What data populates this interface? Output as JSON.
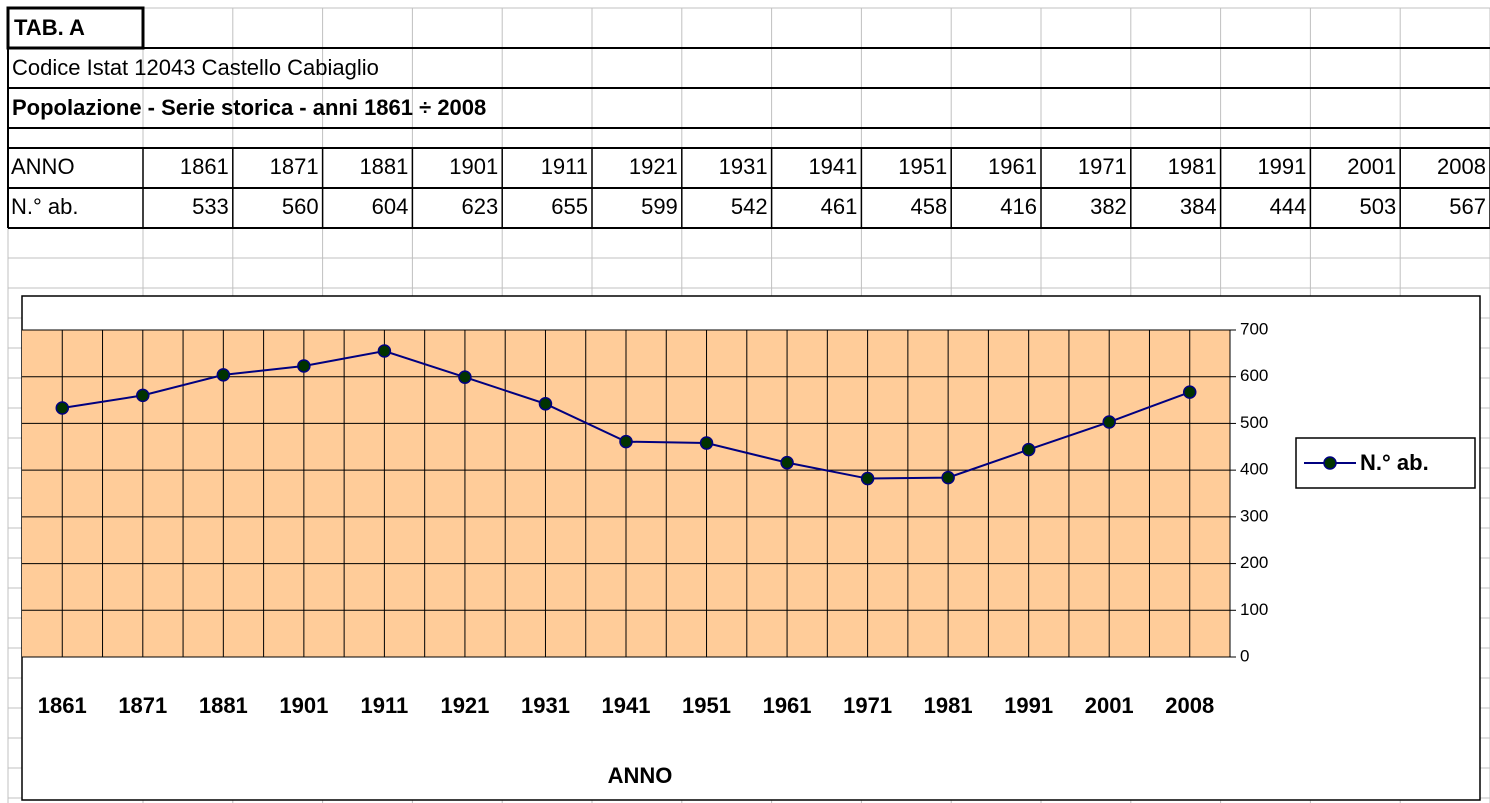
{
  "table": {
    "title": "TAB. A",
    "subtitle": "Codice Istat 12043 Castello Cabiaglio",
    "heading": "Popolazione - Serie storica  - anni 1861 ÷ 2008",
    "rows": [
      [
        "ANNO",
        1861,
        1871,
        1881,
        1901,
        1911,
        1921,
        1931,
        1941,
        1951,
        1961,
        1971,
        1981,
        1991,
        2001,
        2008
      ],
      [
        "N.° ab.",
        533,
        560,
        604,
        623,
        655,
        599,
        542,
        461,
        458,
        416,
        382,
        384,
        444,
        503,
        567
      ]
    ]
  },
  "chart_data": {
    "type": "line",
    "x_label": "ANNO",
    "categories": [
      "1861",
      "1871",
      "1881",
      "1901",
      "1911",
      "1921",
      "1931",
      "1941",
      "1951",
      "1961",
      "1971",
      "1981",
      "1991",
      "2001",
      "2008"
    ],
    "series": [
      {
        "name": "N.° ab.",
        "color": "#000080",
        "marker_color": "#003300",
        "values": [
          533,
          560,
          604,
          623,
          655,
          599,
          542,
          461,
          458,
          416,
          382,
          384,
          444,
          503,
          567
        ]
      }
    ],
    "ylim": [
      0,
      700
    ],
    "yticks": [
      0,
      100,
      200,
      300,
      400,
      500,
      600,
      700
    ],
    "grid": true,
    "legend": "right",
    "plot_background": "#FFCC99"
  }
}
